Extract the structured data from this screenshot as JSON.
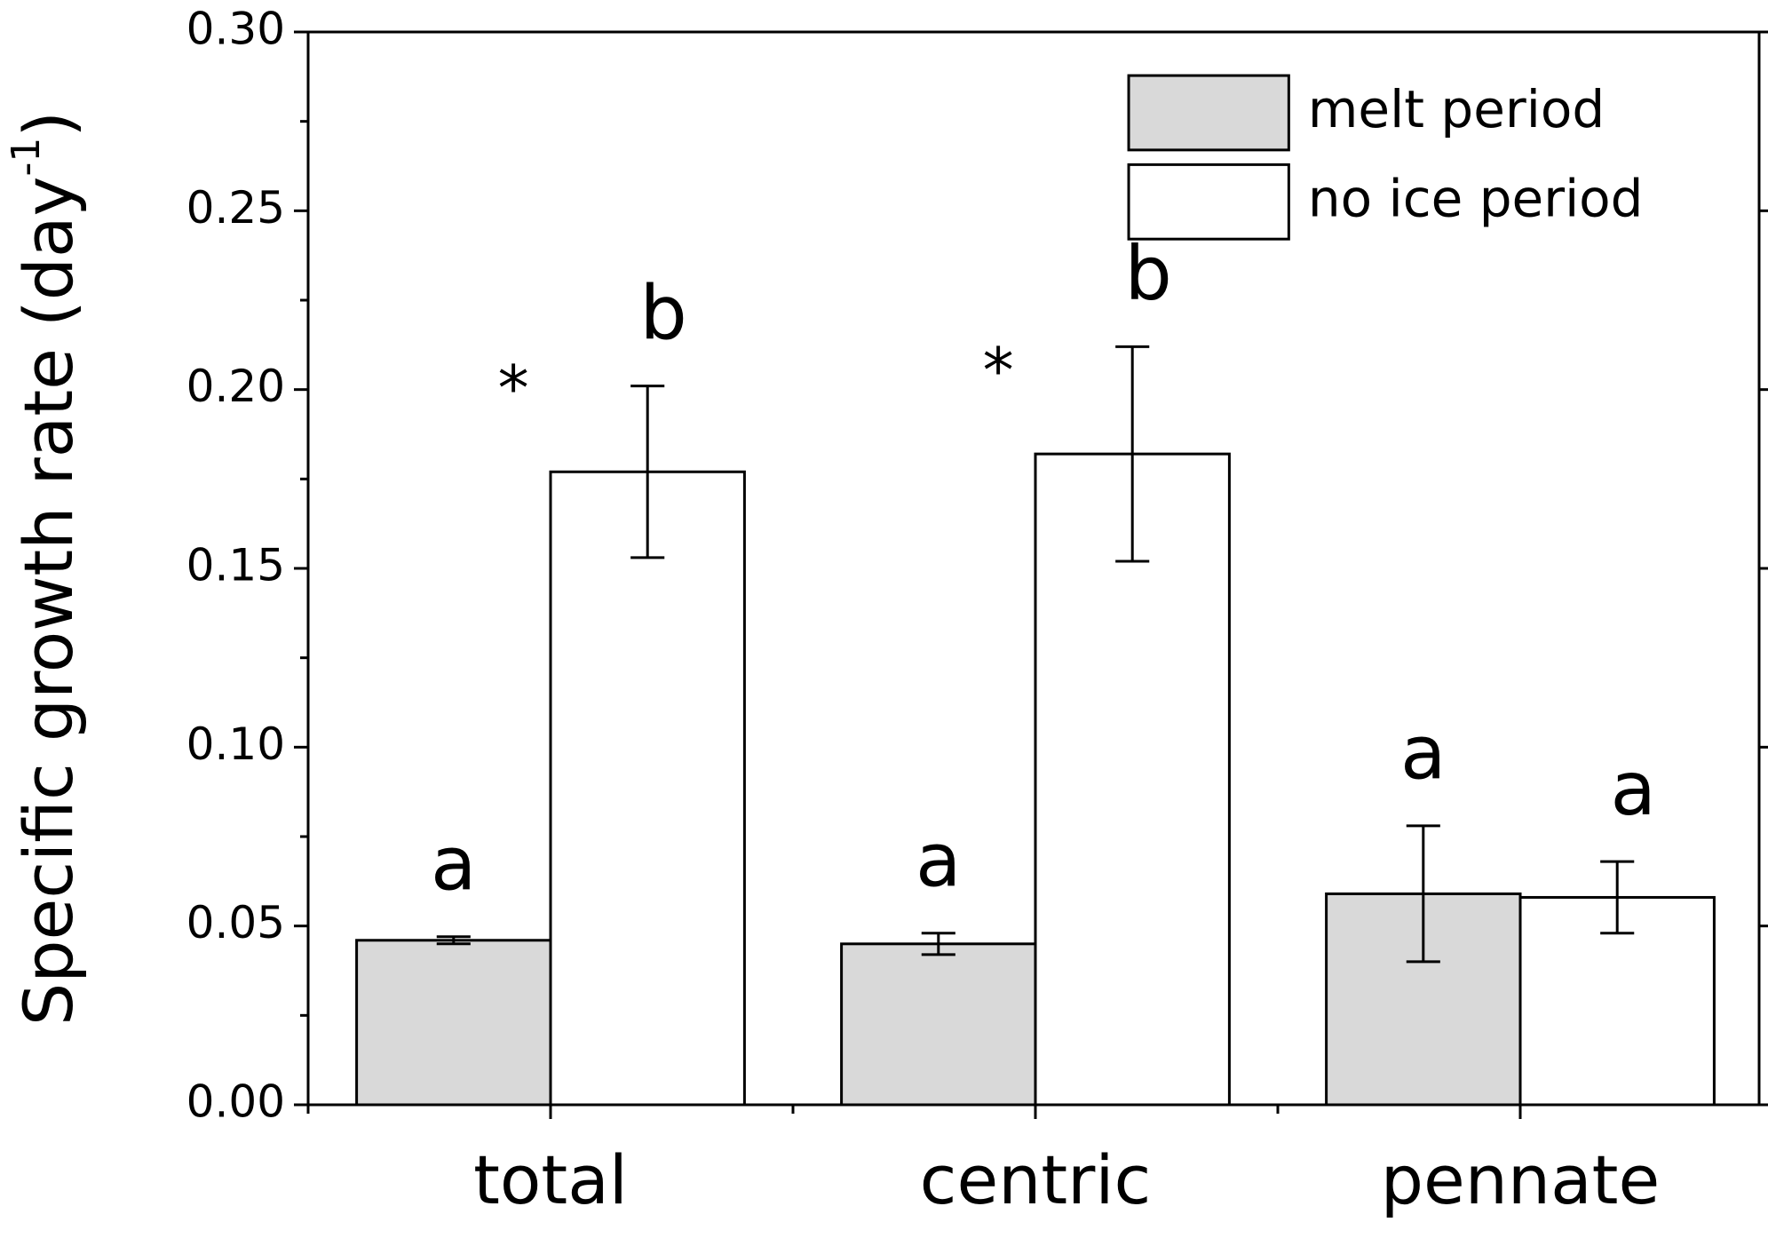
{
  "chart_data": {
    "type": "bar",
    "ylabel": "Specific growth rate (day",
    "ylabel_sup": "-1",
    "ylabel_end": ")",
    "categories": [
      "total",
      "centric",
      "pennate"
    ],
    "series": [
      {
        "name": "melt period",
        "color": "#d9d9d9",
        "values": [
          0.046,
          0.045,
          0.059
        ],
        "errors": [
          0.001,
          0.003,
          0.019
        ],
        "letters": [
          "a",
          "a",
          "a"
        ]
      },
      {
        "name": "no ice period",
        "color": "#ffffff",
        "values": [
          0.177,
          0.182,
          0.058
        ],
        "errors": [
          0.024,
          0.03,
          0.01
        ],
        "letters": [
          "b",
          "b",
          "a"
        ]
      }
    ],
    "significance": [
      "*",
      "*",
      null
    ],
    "ylim": [
      0,
      0.3
    ],
    "yticks": [
      {
        "value": 0,
        "label": "0.00"
      },
      {
        "value": 0.05,
        "label": "0.05"
      },
      {
        "value": 0.1,
        "label": "0.10"
      },
      {
        "value": 0.15,
        "label": "0.15"
      },
      {
        "value": 0.2,
        "label": "0.20"
      },
      {
        "value": 0.25,
        "label": "0.25"
      },
      {
        "value": 0.3,
        "label": "0.30"
      }
    ],
    "yminor_ticks": [
      0.025,
      0.075,
      0.125,
      0.175,
      0.225,
      0.275
    ],
    "legend": "upper right",
    "grid": false
  }
}
